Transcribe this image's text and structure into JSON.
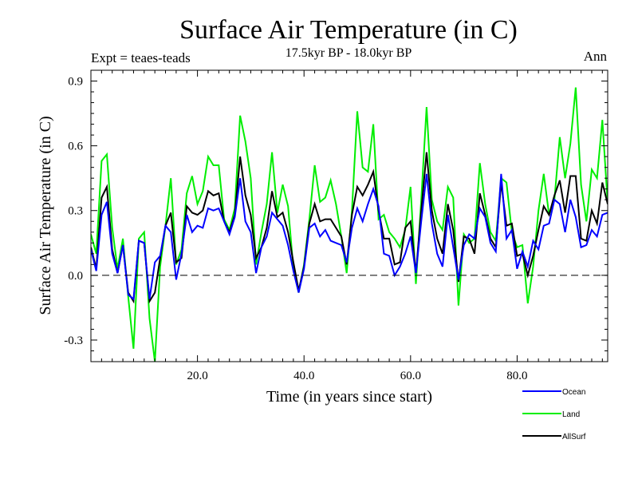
{
  "chart_data": {
    "type": "line",
    "title": "Surface Air Temperature (in C)",
    "subtitle": "17.5kyr BP - 18.0kyr BP",
    "left_label": "Expt = teaes-teads",
    "right_label": "Ann",
    "xlabel": "Time (in years since start)",
    "ylabel": "Surface Air Temperature (in C)",
    "xlim": [
      0,
      97
    ],
    "ylim": [
      -0.4,
      0.95
    ],
    "x_ticks": [
      20,
      40,
      60,
      80
    ],
    "x_tick_labels": [
      "20.0",
      "40.0",
      "60.0",
      "80.0"
    ],
    "y_ticks": [
      -0.3,
      0.0,
      0.3,
      0.6,
      0.9
    ],
    "y_tick_labels": [
      "-0.3",
      "0.0",
      "0.3",
      "0.6",
      "0.9"
    ],
    "zero_line": "dashed",
    "legend_position": "bottom-right",
    "series": [
      {
        "name": "Ocean",
        "color": "#0000ff",
        "x": [
          0,
          1,
          2,
          3,
          4,
          5,
          6,
          7,
          8,
          9,
          10,
          11,
          12,
          13,
          14,
          15,
          16,
          17,
          18,
          19,
          20,
          21,
          22,
          23,
          24,
          25,
          26,
          27,
          28,
          29,
          30,
          31,
          32,
          33,
          34,
          35,
          36,
          37,
          38,
          39,
          40,
          41,
          42,
          43,
          44,
          45,
          46,
          47,
          48,
          49,
          50,
          51,
          52,
          53,
          54,
          55,
          56,
          57,
          58,
          59,
          60,
          61,
          62,
          63,
          64,
          65,
          66,
          67,
          68,
          69,
          70,
          71,
          72,
          73,
          74,
          75,
          76,
          77,
          78,
          79,
          80,
          81,
          82,
          83,
          84,
          85,
          86,
          87,
          88,
          89,
          90,
          91,
          92,
          93,
          94,
          95,
          96,
          97
        ],
        "values": [
          0.12,
          0.02,
          0.28,
          0.34,
          0.1,
          0.01,
          0.14,
          -0.09,
          -0.11,
          0.16,
          0.15,
          -0.11,
          0.06,
          0.09,
          0.23,
          0.2,
          -0.02,
          0.1,
          0.28,
          0.2,
          0.23,
          0.22,
          0.31,
          0.3,
          0.31,
          0.25,
          0.19,
          0.27,
          0.45,
          0.25,
          0.2,
          0.01,
          0.13,
          0.18,
          0.29,
          0.26,
          0.23,
          0.14,
          0.02,
          -0.08,
          0.03,
          0.22,
          0.24,
          0.18,
          0.21,
          0.16,
          0.15,
          0.14,
          0.06,
          0.22,
          0.31,
          0.25,
          0.33,
          0.4,
          0.32,
          0.1,
          0.09,
          0.0,
          0.04,
          0.1,
          0.18,
          0.01,
          0.25,
          0.47,
          0.24,
          0.1,
          0.04,
          0.28,
          0.13,
          -0.02,
          0.14,
          0.19,
          0.17,
          0.31,
          0.27,
          0.15,
          0.11,
          0.47,
          0.17,
          0.21,
          0.03,
          0.11,
          0.04,
          0.16,
          0.12,
          0.23,
          0.24,
          0.35,
          0.33,
          0.2,
          0.35,
          0.27,
          0.13,
          0.14,
          0.21,
          0.18,
          0.28,
          0.29
        ]
      },
      {
        "name": "Land",
        "color": "#00ee00",
        "x": [
          0,
          1,
          2,
          3,
          4,
          5,
          6,
          7,
          8,
          9,
          10,
          11,
          12,
          13,
          14,
          15,
          16,
          17,
          18,
          19,
          20,
          21,
          22,
          23,
          24,
          25,
          26,
          27,
          28,
          29,
          30,
          31,
          32,
          33,
          34,
          35,
          36,
          37,
          38,
          39,
          40,
          41,
          42,
          43,
          44,
          45,
          46,
          47,
          48,
          49,
          50,
          51,
          52,
          53,
          54,
          55,
          56,
          57,
          58,
          59,
          60,
          61,
          62,
          63,
          64,
          65,
          66,
          67,
          68,
          69,
          70,
          71,
          72,
          73,
          74,
          75,
          76,
          77,
          78,
          79,
          80,
          81,
          82,
          83,
          84,
          85,
          86,
          87,
          88,
          89,
          90,
          91,
          92,
          93,
          94,
          95,
          96,
          97
        ],
        "values": [
          0.19,
          0.1,
          0.53,
          0.56,
          0.22,
          0.03,
          0.17,
          -0.1,
          -0.34,
          0.17,
          0.2,
          -0.2,
          -0.4,
          0.04,
          0.23,
          0.45,
          0.05,
          0.12,
          0.38,
          0.46,
          0.33,
          0.39,
          0.55,
          0.51,
          0.51,
          0.26,
          0.21,
          0.31,
          0.74,
          0.62,
          0.45,
          0.05,
          0.2,
          0.33,
          0.57,
          0.29,
          0.42,
          0.32,
          0.03,
          -0.08,
          0.05,
          0.26,
          0.51,
          0.34,
          0.36,
          0.44,
          0.33,
          0.18,
          0.01,
          0.3,
          0.76,
          0.5,
          0.48,
          0.7,
          0.26,
          0.28,
          0.2,
          0.17,
          0.13,
          0.21,
          0.41,
          -0.04,
          0.35,
          0.78,
          0.35,
          0.25,
          0.21,
          0.41,
          0.36,
          -0.14,
          0.19,
          0.15,
          0.17,
          0.52,
          0.33,
          0.2,
          0.16,
          0.45,
          0.43,
          0.2,
          0.13,
          0.14,
          -0.13,
          0.04,
          0.3,
          0.47,
          0.28,
          0.35,
          0.64,
          0.45,
          0.61,
          0.87,
          0.42,
          0.25,
          0.49,
          0.45,
          0.72,
          0.33
        ]
      },
      {
        "name": "AllSurf",
        "color": "#000000",
        "x": [
          0,
          1,
          2,
          3,
          4,
          5,
          6,
          7,
          8,
          9,
          10,
          11,
          12,
          13,
          14,
          15,
          16,
          17,
          18,
          19,
          20,
          21,
          22,
          23,
          24,
          25,
          26,
          27,
          28,
          29,
          30,
          31,
          32,
          33,
          34,
          35,
          36,
          37,
          38,
          39,
          40,
          41,
          42,
          43,
          44,
          45,
          46,
          47,
          48,
          49,
          50,
          51,
          52,
          53,
          54,
          55,
          56,
          57,
          58,
          59,
          60,
          61,
          62,
          63,
          64,
          65,
          66,
          67,
          68,
          69,
          70,
          71,
          72,
          73,
          74,
          75,
          76,
          77,
          78,
          79,
          80,
          81,
          82,
          83,
          84,
          85,
          86,
          87,
          88,
          89,
          90,
          91,
          92,
          93,
          94,
          95,
          96,
          97
        ],
        "values": [
          0.13,
          0.03,
          0.36,
          0.41,
          0.12,
          0.01,
          0.14,
          -0.08,
          -0.12,
          0.16,
          0.15,
          -0.12,
          -0.08,
          0.08,
          0.23,
          0.29,
          0.06,
          0.08,
          0.32,
          0.29,
          0.28,
          0.3,
          0.39,
          0.37,
          0.38,
          0.25,
          0.2,
          0.28,
          0.55,
          0.37,
          0.28,
          0.08,
          0.13,
          0.22,
          0.39,
          0.27,
          0.29,
          0.2,
          0.06,
          -0.07,
          0.04,
          0.24,
          0.33,
          0.25,
          0.26,
          0.26,
          0.22,
          0.18,
          0.05,
          0.28,
          0.41,
          0.37,
          0.42,
          0.48,
          0.3,
          0.17,
          0.17,
          0.05,
          0.06,
          0.22,
          0.25,
          0.01,
          0.3,
          0.57,
          0.3,
          0.17,
          0.1,
          0.33,
          0.21,
          -0.03,
          0.18,
          0.17,
          0.1,
          0.38,
          0.28,
          0.17,
          0.13,
          0.43,
          0.23,
          0.24,
          0.09,
          0.1,
          0.0,
          0.09,
          0.21,
          0.32,
          0.28,
          0.37,
          0.44,
          0.29,
          0.46,
          0.46,
          0.17,
          0.16,
          0.3,
          0.24,
          0.43,
          0.33
        ]
      }
    ]
  }
}
